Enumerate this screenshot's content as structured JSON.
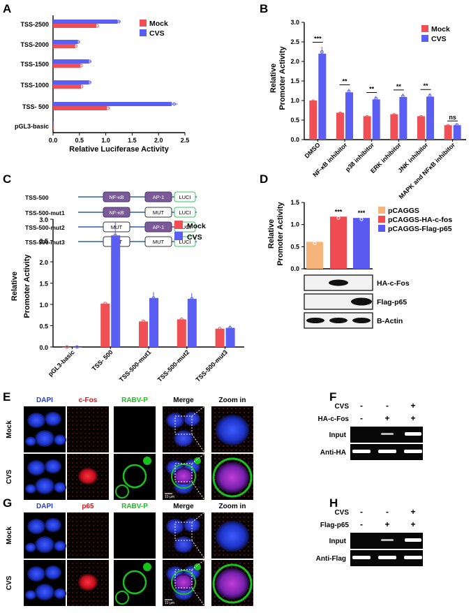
{
  "colors": {
    "mock": "#f05055",
    "cvs": "#5a5ef2",
    "pcaggs": "#f5b57a",
    "hacfos": "#f04b50",
    "flagp65": "#5a5af0",
    "dapi": "#1f3cf0",
    "red": "#e0121a",
    "green": "#18c21c"
  },
  "panels": {
    "A": "A",
    "B": "B",
    "C": "C",
    "D": "D",
    "E": "E",
    "F": "F",
    "G": "G",
    "H": "H"
  },
  "panelA": {
    "xlabel": "Relative Luciferase Activity",
    "legend": [
      "Mock",
      "CVS"
    ],
    "categories": [
      "TSS-2500",
      "TSS-2000",
      "TSS-1500",
      "TSS-1000",
      "TSS-  500",
      "pGL3-basic"
    ],
    "xticks": [
      "0.0",
      "0.5",
      "1.0",
      "1.5",
      "2.0",
      "2.5"
    ],
    "mock": [
      0.82,
      0.42,
      0.52,
      0.53,
      1.02,
      0.0
    ],
    "cvs": [
      1.22,
      0.47,
      0.68,
      0.68,
      2.25,
      0.0
    ]
  },
  "panelB": {
    "ylabel1": "Relative",
    "ylabel2": "Promoter Activity",
    "legend": [
      "Mock",
      "CVS"
    ],
    "categories": [
      "DMSO",
      "NF-κB inhibitor",
      "p38 inhibitor",
      "ERK inhibitor",
      "JNK inhibitor",
      "MAPK and NFκB inhibitor"
    ],
    "yticks": [
      "0.0",
      "0.5",
      "1.0",
      "1.5",
      "2.0",
      "2.5",
      "3.0"
    ],
    "mock": [
      1.0,
      0.69,
      0.6,
      0.65,
      0.6,
      0.37
    ],
    "cvs": [
      2.2,
      1.21,
      1.03,
      1.09,
      1.1,
      0.37
    ],
    "sig": [
      "***",
      "**",
      "**",
      "**",
      "**",
      "ns"
    ]
  },
  "panelC": {
    "constructs": [
      {
        "name": "TSS-500",
        "boxes": [
          "NF-κB",
          "AP-1",
          "LUCI"
        ]
      },
      {
        "name": "TSS-500-mut1",
        "boxes": [
          "NF-κB",
          "MUT",
          "LUCI"
        ]
      },
      {
        "name": "TSS-500-mut2",
        "boxes": [
          "MUT",
          "AP-1",
          "LUCI"
        ]
      },
      {
        "name": "TSS-500-mut3",
        "boxes": [
          "MUT",
          "MUT",
          "LUCI"
        ]
      }
    ],
    "ylabel1": "Relative",
    "ylabel2": "Promoter Activity",
    "legend": [
      "Mock",
      "CVS"
    ],
    "categories": [
      "pGL3-basic",
      "TSS- 500",
      "TSS-500-mut1",
      "TSS-500-mut2",
      "TSS-500-mut3"
    ],
    "yticks": [
      "0.0",
      "0.5",
      "1.0",
      "1.5",
      "2.0",
      "2.5",
      "3.0"
    ],
    "mock": [
      0.0,
      1.02,
      0.6,
      0.65,
      0.43
    ],
    "cvs": [
      0.0,
      2.62,
      1.15,
      1.13,
      0.45
    ]
  },
  "panelD": {
    "ylabel1": "Relative",
    "ylabel2": "Promoter Activity",
    "legend": [
      "pCAGGS",
      "pCAGGS-HA-c-fos",
      "pCAGGS-Flag-p65"
    ],
    "yticks": [
      "0.0",
      "0.5",
      "1.0",
      "1.5"
    ],
    "values": [
      0.61,
      1.18,
      1.15
    ],
    "sig": [
      "",
      "***",
      "***"
    ],
    "blots": [
      "HA-c-Fos",
      "Flag-p65",
      "B-Actin"
    ]
  },
  "panelE": {
    "cols": [
      "DAPI",
      "c-Fos",
      "RABV-P",
      "Merge",
      "Zoom in"
    ],
    "rows": [
      "Mock",
      "CVS"
    ],
    "scale": "10 μm"
  },
  "panelG": {
    "cols": [
      "DAPI",
      "p65",
      "RABV-P",
      "Merge",
      "Zoom in"
    ],
    "rows": [
      "Mock",
      "CVS"
    ],
    "scale": "10 μm"
  },
  "panelF": {
    "row1": "CVS",
    "row2": "HA-c-Fos",
    "signs1": [
      "-",
      "-",
      "+"
    ],
    "signs2": [
      "-",
      "+",
      "+"
    ],
    "bands": [
      "Input",
      "Anti-HA"
    ]
  },
  "panelH": {
    "row1": "CVS",
    "row2": "Flag-p65",
    "signs1": [
      "-",
      "-",
      "+"
    ],
    "signs2": [
      "-",
      "+",
      "+"
    ],
    "bands": [
      "Input",
      "Anti-Flag"
    ]
  },
  "chart_data": [
    {
      "type": "bar",
      "orientation": "horizontal",
      "categories": [
        "TSS-2500",
        "TSS-2000",
        "TSS-1500",
        "TSS-1000",
        "TSS-  500",
        "pGL3-basic"
      ],
      "series": [
        {
          "name": "Mock",
          "values": [
            0.82,
            0.42,
            0.52,
            0.53,
            1.02,
            0.0
          ]
        },
        {
          "name": "CVS",
          "values": [
            1.22,
            0.47,
            0.68,
            0.68,
            2.25,
            0.0
          ]
        }
      ],
      "xlabel": "Relative Luciferase Activity",
      "xlim": [
        0,
        2.5
      ]
    },
    {
      "type": "bar",
      "categories": [
        "DMSO",
        "NF-κB inhibitor",
        "p38 inhibitor",
        "ERK inhibitor",
        "JNK inhibitor",
        "MAPK and NFκB inhibitor"
      ],
      "series": [
        {
          "name": "Mock",
          "values": [
            1.0,
            0.69,
            0.6,
            0.65,
            0.6,
            0.37
          ]
        },
        {
          "name": "CVS",
          "values": [
            2.2,
            1.21,
            1.03,
            1.09,
            1.1,
            0.37
          ]
        }
      ],
      "ylabel": "Relative Promoter Activity",
      "ylim": [
        0,
        3.0
      ]
    },
    {
      "type": "bar",
      "categories": [
        "pGL3-basic",
        "TSS- 500",
        "TSS-500-mut1",
        "TSS-500-mut2",
        "TSS-500-mut3"
      ],
      "series": [
        {
          "name": "Mock",
          "values": [
            0.0,
            1.02,
            0.6,
            0.65,
            0.43
          ]
        },
        {
          "name": "CVS",
          "values": [
            0.0,
            2.62,
            1.15,
            1.13,
            0.45
          ]
        }
      ],
      "ylabel": "Relative Promoter Activity",
      "ylim": [
        0,
        3.0
      ]
    },
    {
      "type": "bar",
      "categories": [
        "pCAGGS",
        "pCAGGS-HA-c-fos",
        "pCAGGS-Flag-p65"
      ],
      "values": [
        0.61,
        1.18,
        1.15
      ],
      "ylabel": "Relative Promoter Activity",
      "ylim": [
        0,
        1.5
      ]
    }
  ]
}
